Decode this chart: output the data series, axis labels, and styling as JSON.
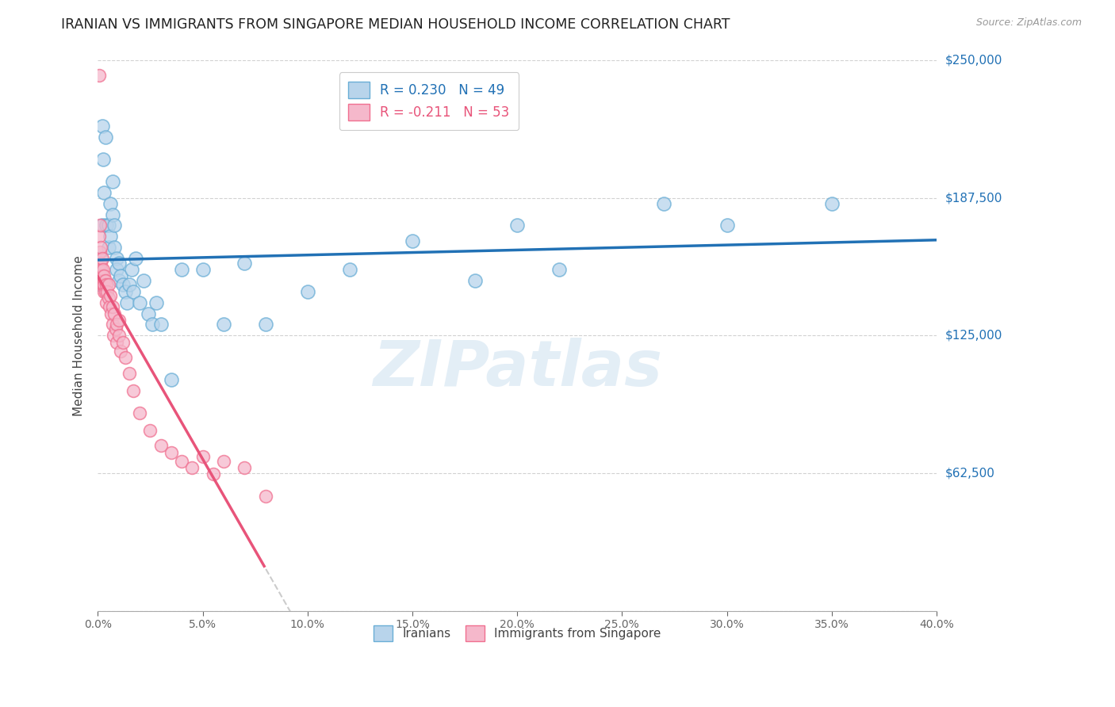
{
  "title": "IRANIAN VS IMMIGRANTS FROM SINGAPORE MEDIAN HOUSEHOLD INCOME CORRELATION CHART",
  "source": "Source: ZipAtlas.com",
  "ylabel": "Median Household Income",
  "y_ticks": [
    0,
    62500,
    125000,
    187500,
    250000
  ],
  "y_tick_labels": [
    "",
    "$62,500",
    "$125,000",
    "$187,500",
    "$250,000"
  ],
  "x_min": 0.0,
  "x_max": 40.0,
  "y_min": 0,
  "y_max": 250000,
  "iranians_R": 0.23,
  "iranians_N": 49,
  "singapore_R": -0.211,
  "singapore_N": 53,
  "blue_line_color": "#2171b5",
  "pink_line_color": "#e8547a",
  "blue_scatter_face": "#b8d4eb",
  "blue_scatter_edge": "#6aaed6",
  "pink_scatter_face": "#f5b8cb",
  "pink_scatter_edge": "#f07090",
  "watermark": "ZIPatlas",
  "iranians_x": [
    0.1,
    0.15,
    0.2,
    0.2,
    0.25,
    0.3,
    0.35,
    0.4,
    0.5,
    0.5,
    0.6,
    0.6,
    0.7,
    0.7,
    0.8,
    0.8,
    0.9,
    0.9,
    1.0,
    1.0,
    1.1,
    1.2,
    1.3,
    1.4,
    1.5,
    1.6,
    1.7,
    1.8,
    2.0,
    2.2,
    2.4,
    2.6,
    2.8,
    3.0,
    3.5,
    4.0,
    5.0,
    6.0,
    7.0,
    8.0,
    10.0,
    12.0,
    15.0,
    18.0,
    20.0,
    22.0,
    27.0,
    30.0,
    35.0
  ],
  "iranians_y": [
    148000,
    160000,
    175000,
    220000,
    205000,
    190000,
    215000,
    175000,
    165000,
    175000,
    185000,
    170000,
    195000,
    180000,
    165000,
    175000,
    160000,
    155000,
    150000,
    158000,
    152000,
    148000,
    145000,
    140000,
    148000,
    155000,
    145000,
    160000,
    140000,
    150000,
    135000,
    130000,
    140000,
    130000,
    105000,
    155000,
    155000,
    130000,
    158000,
    130000,
    145000,
    155000,
    168000,
    150000,
    175000,
    155000,
    185000,
    175000,
    185000
  ],
  "singapore_x": [
    0.05,
    0.07,
    0.08,
    0.1,
    0.12,
    0.12,
    0.15,
    0.15,
    0.18,
    0.2,
    0.2,
    0.22,
    0.25,
    0.25,
    0.28,
    0.3,
    0.3,
    0.3,
    0.35,
    0.35,
    0.4,
    0.4,
    0.45,
    0.5,
    0.5,
    0.55,
    0.6,
    0.65,
    0.7,
    0.7,
    0.75,
    0.8,
    0.85,
    0.9,
    0.9,
    1.0,
    1.0,
    1.1,
    1.2,
    1.3,
    1.5,
    1.7,
    2.0,
    2.5,
    3.0,
    3.5,
    4.0,
    4.5,
    5.0,
    5.5,
    6.0,
    7.0,
    8.0
  ],
  "singapore_y": [
    243000,
    155000,
    170000,
    175000,
    163000,
    155000,
    165000,
    158000,
    155000,
    148000,
    160000,
    152000,
    148000,
    155000,
    150000,
    145000,
    152000,
    148000,
    145000,
    150000,
    140000,
    148000,
    145000,
    142000,
    148000,
    138000,
    143000,
    135000,
    138000,
    130000,
    125000,
    135000,
    128000,
    130000,
    122000,
    132000,
    125000,
    118000,
    122000,
    115000,
    108000,
    100000,
    90000,
    82000,
    75000,
    72000,
    68000,
    65000,
    70000,
    62000,
    68000,
    65000,
    52000
  ]
}
